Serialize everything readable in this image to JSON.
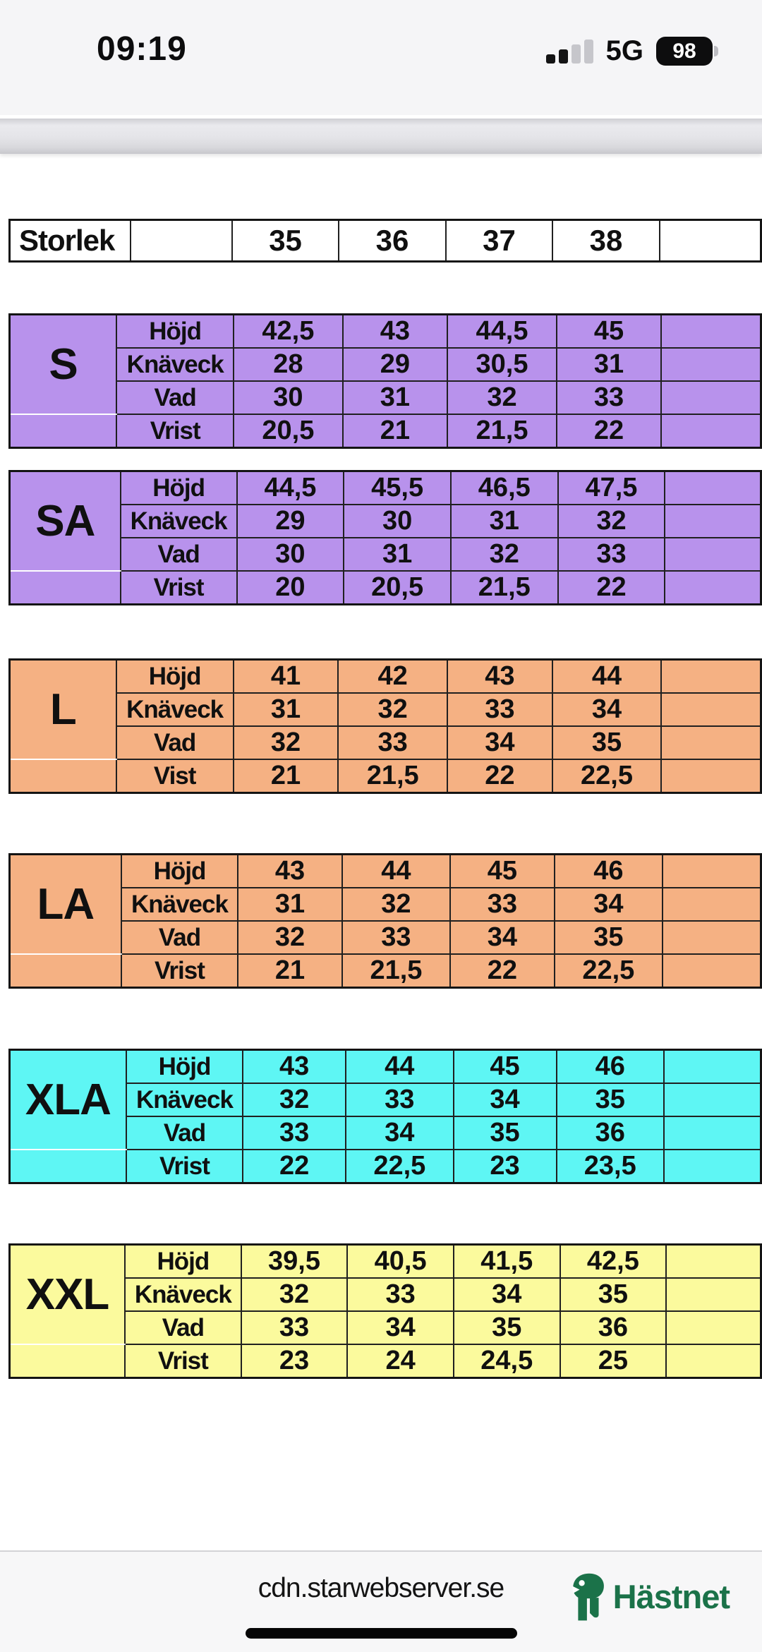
{
  "status_bar": {
    "time": "09:19",
    "network": "5G",
    "battery_level": "98",
    "signal_bars_filled": 2,
    "signal_bars_total": 4
  },
  "size_chart": {
    "header": {
      "label": "Storlek",
      "columns": [
        "35",
        "36",
        "37",
        "38"
      ]
    },
    "tables": [
      {
        "label": "S",
        "color": "#b892ec",
        "rows": [
          {
            "name": "Höjd",
            "values": [
              "42,5",
              "43",
              "44,5",
              "45"
            ]
          },
          {
            "name": "Knäveck",
            "values": [
              "28",
              "29",
              "30,5",
              "31"
            ]
          },
          {
            "name": "Vad",
            "values": [
              "30",
              "31",
              "32",
              "33"
            ]
          },
          {
            "name": "Vrist",
            "values": [
              "20,5",
              "21",
              "21,5",
              "22"
            ]
          }
        ]
      },
      {
        "label": "SA",
        "color": "#b892ec",
        "rows": [
          {
            "name": "Höjd",
            "values": [
              "44,5",
              "45,5",
              "46,5",
              "47,5"
            ]
          },
          {
            "name": "Knäveck",
            "values": [
              "29",
              "30",
              "31",
              "32"
            ]
          },
          {
            "name": "Vad",
            "values": [
              "30",
              "31",
              "32",
              "33"
            ]
          },
          {
            "name": "Vrist",
            "values": [
              "20",
              "20,5",
              "21,5",
              "22"
            ]
          }
        ]
      },
      {
        "label": "L",
        "color": "#f5b183",
        "rows": [
          {
            "name": "Höjd",
            "values": [
              "41",
              "42",
              "43",
              "44"
            ]
          },
          {
            "name": "Knäveck",
            "values": [
              "31",
              "32",
              "33",
              "34"
            ]
          },
          {
            "name": "Vad",
            "values": [
              "32",
              "33",
              "34",
              "35"
            ]
          },
          {
            "name": "Vist",
            "values": [
              "21",
              "21,5",
              "22",
              "22,5"
            ]
          }
        ]
      },
      {
        "label": "LA",
        "color": "#f5b183",
        "rows": [
          {
            "name": "Höjd",
            "values": [
              "43",
              "44",
              "45",
              "46"
            ]
          },
          {
            "name": "Knäveck",
            "values": [
              "31",
              "32",
              "33",
              "34"
            ]
          },
          {
            "name": "Vad",
            "values": [
              "32",
              "33",
              "34",
              "35"
            ]
          },
          {
            "name": "Vrist",
            "values": [
              "21",
              "21,5",
              "22",
              "22,5"
            ]
          }
        ]
      },
      {
        "label": "XLA",
        "color": "#5ef6f4",
        "rows": [
          {
            "name": "Höjd",
            "values": [
              "43",
              "44",
              "45",
              "46"
            ]
          },
          {
            "name": "Knäveck",
            "values": [
              "32",
              "33",
              "34",
              "35"
            ]
          },
          {
            "name": "Vad",
            "values": [
              "33",
              "34",
              "35",
              "36"
            ]
          },
          {
            "name": "Vrist",
            "values": [
              "22",
              "22,5",
              "23",
              "23,5"
            ]
          }
        ]
      },
      {
        "label": "XXL",
        "color": "#fbfa9d",
        "rows": [
          {
            "name": "Höjd",
            "values": [
              "39,5",
              "40,5",
              "41,5",
              "42,5"
            ]
          },
          {
            "name": "Knäveck",
            "values": [
              "32",
              "33",
              "34",
              "35"
            ]
          },
          {
            "name": "Vad",
            "values": [
              "33",
              "34",
              "35",
              "36"
            ]
          },
          {
            "name": "Vrist",
            "values": [
              "23",
              "24",
              "24,5",
              "25"
            ]
          }
        ]
      }
    ]
  },
  "footer": {
    "url": "cdn.starwebserver.se",
    "brand": "Hästnet",
    "brand_color": "#1b7249"
  }
}
